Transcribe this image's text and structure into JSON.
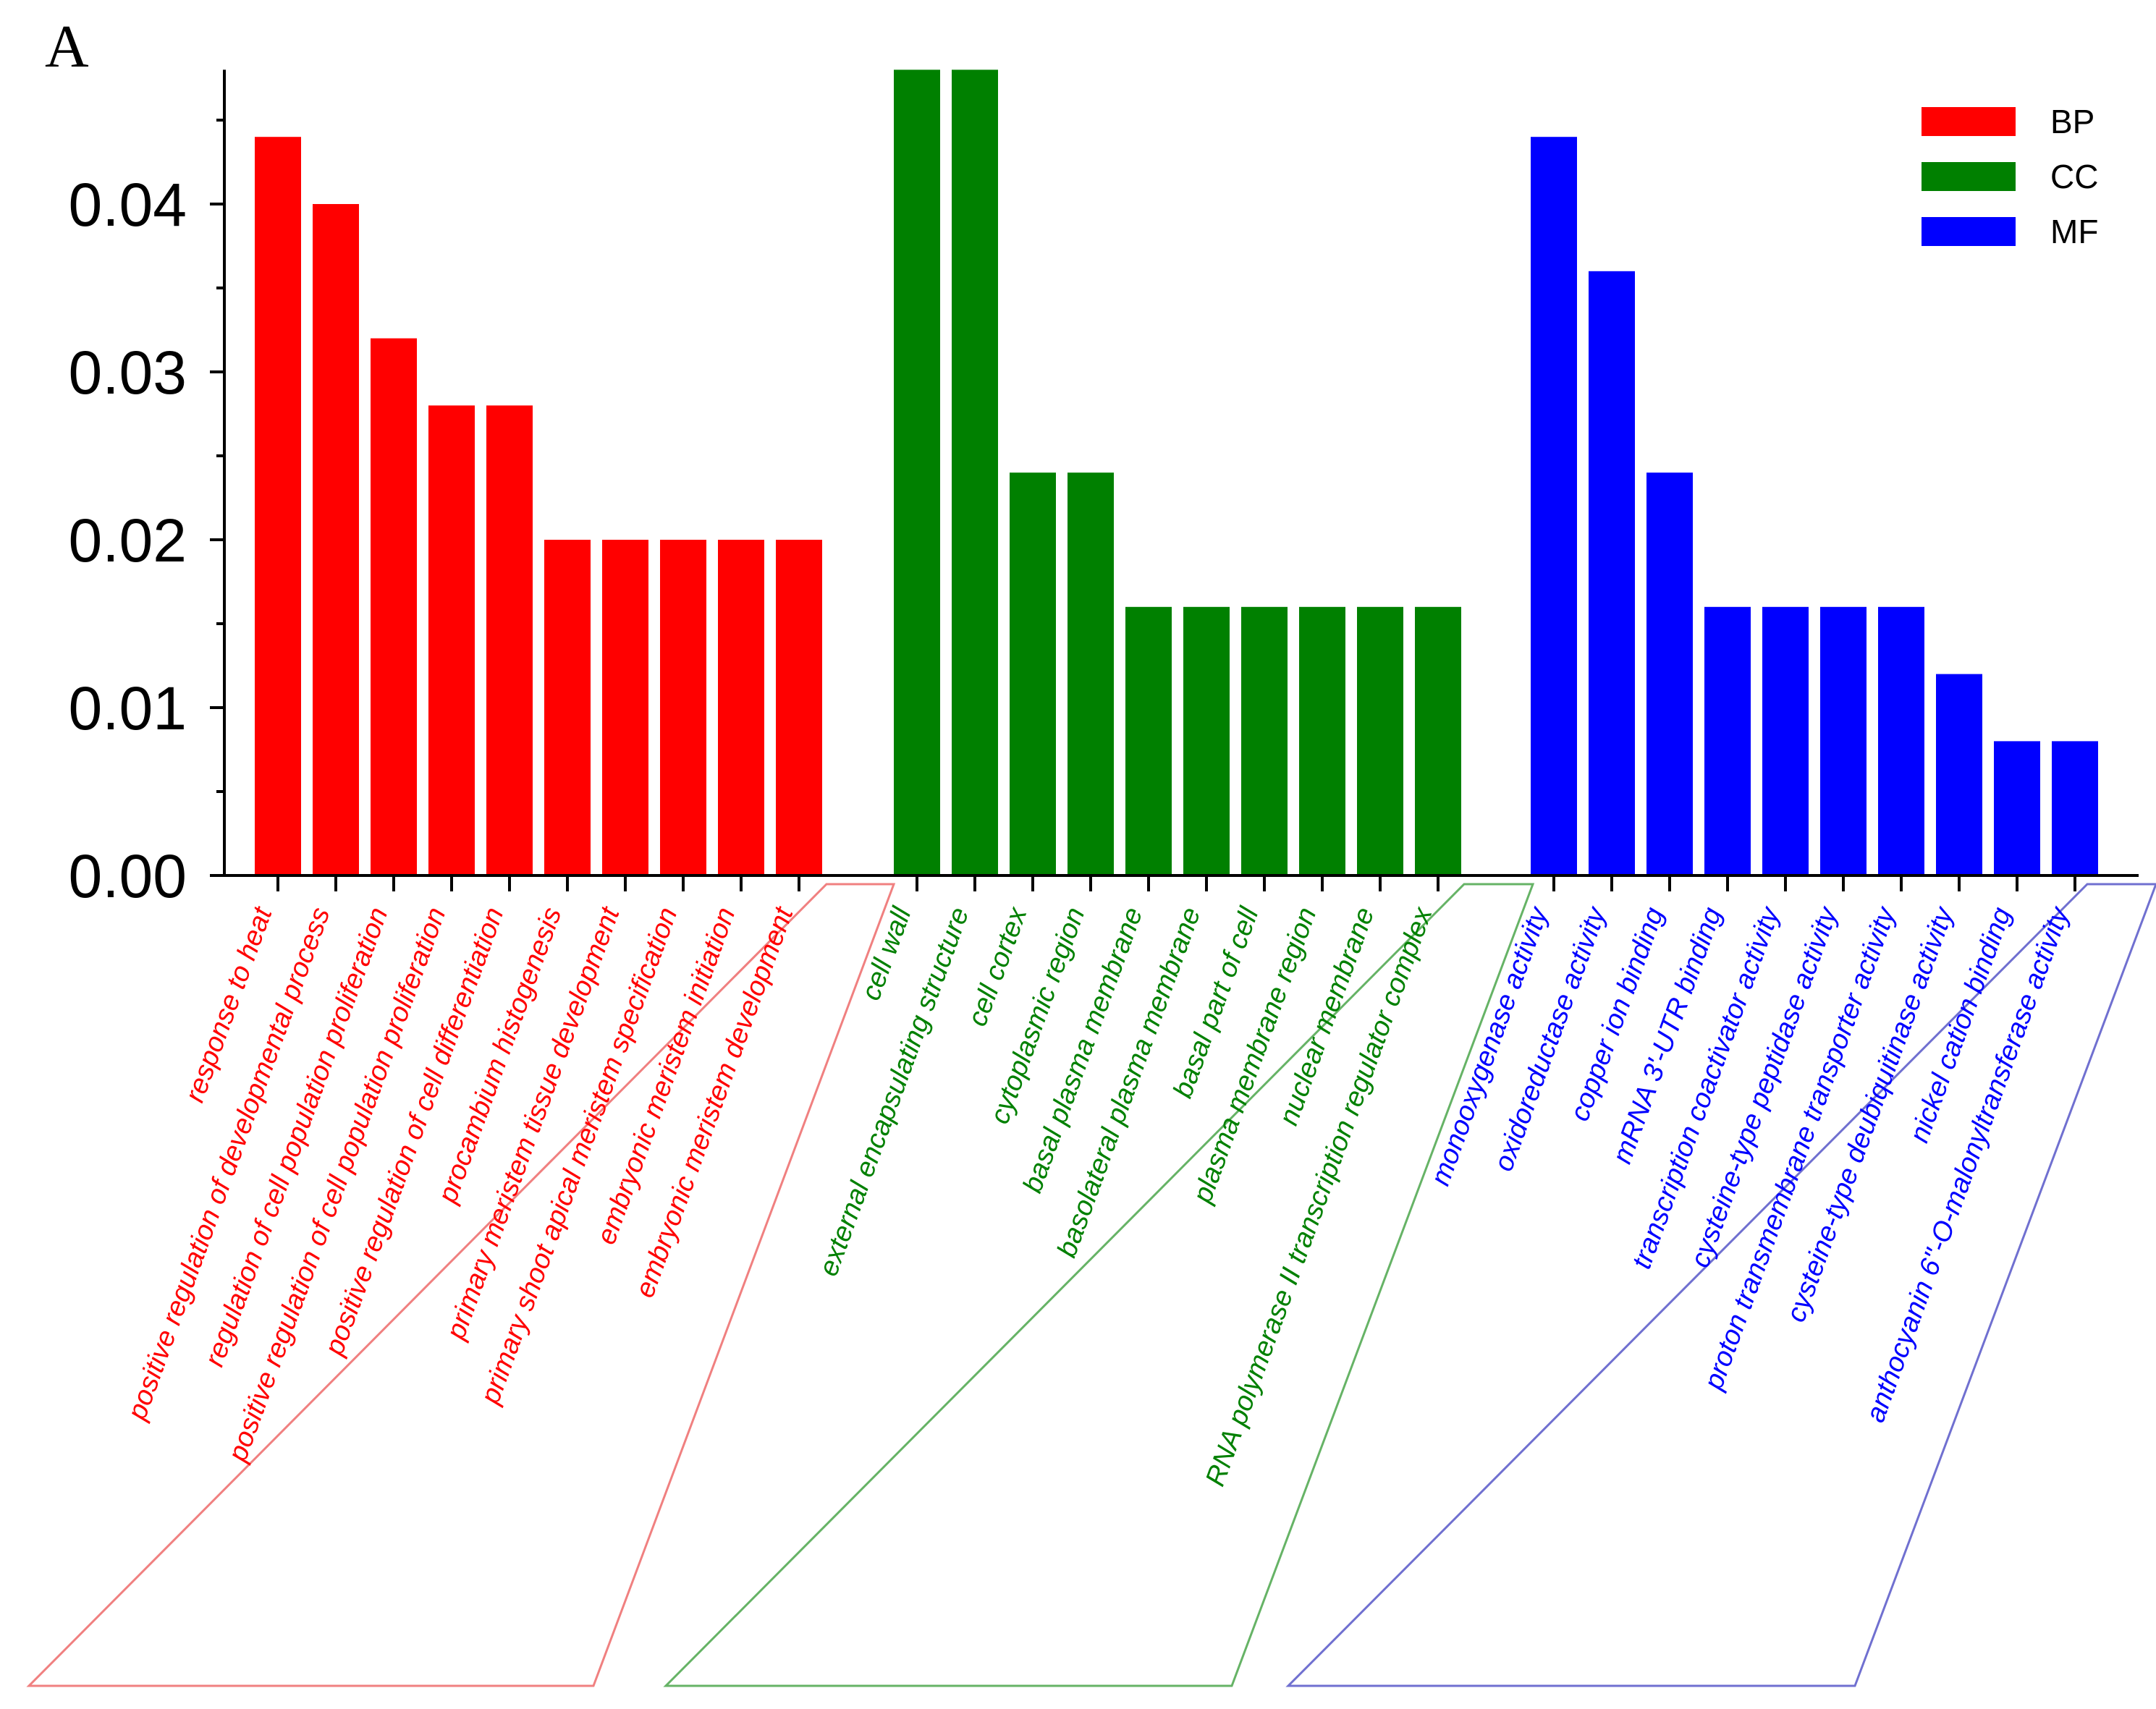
{
  "panel_label": "A",
  "colors": {
    "BP": "#ff0000",
    "CC": "#008000",
    "MF": "#0000ff",
    "BP_frame": "#f08080",
    "CC_frame": "#66b366",
    "MF_frame": "#7070d0"
  },
  "chart_data": {
    "type": "bar",
    "title": "",
    "xlabel": "",
    "ylabel": "",
    "ylim": [
      0,
      0.048
    ],
    "yticks": [
      "0.00",
      "0.01",
      "0.02",
      "0.03",
      "0.04"
    ],
    "legend": {
      "position": "top-right",
      "entries": [
        "BP",
        "CC",
        "MF"
      ]
    },
    "series": [
      {
        "name": "BP",
        "categories": [
          "response to heat",
          "positive regulation of developmental process",
          "regulation of cell population proliferation",
          "positive regulation of cell population proliferation",
          "positive regulation of cell differentiation",
          "procambium histogenesis",
          "primary meristem tissue development",
          "primary shoot apical meristem specification",
          "embryonic meristem initiation",
          "embryonic meristem development"
        ],
        "values": [
          0.044,
          0.04,
          0.032,
          0.028,
          0.028,
          0.02,
          0.02,
          0.02,
          0.02,
          0.02
        ]
      },
      {
        "name": "CC",
        "categories": [
          "cell wall",
          "external encapsulating structure",
          "cell cortex",
          "cytoplasmic region",
          "basal plasma membrane",
          "basolateral plasma membrane",
          "basal part of cell",
          "plasma membrane region",
          "nuclear membrane",
          "RNA polymerase II transcription regulator complex"
        ],
        "values": [
          0.048,
          0.048,
          0.024,
          0.024,
          0.016,
          0.016,
          0.016,
          0.016,
          0.016,
          0.016
        ]
      },
      {
        "name": "MF",
        "categories": [
          "monooxygenase activity",
          "oxidoreductase activity",
          "copper ion binding",
          "mRNA 3'-UTR binding",
          "transcription coactivator activity",
          "cysteine-type peptidase activity",
          "proton transmembrane transporter activity",
          "cysteine-type deubiquitinase activity",
          "nickel cation binding",
          "anthocyanin 6''-O-malonyltransferase activity"
        ],
        "values": [
          0.044,
          0.036,
          0.024,
          0.016,
          0.016,
          0.016,
          0.016,
          0.012,
          0.008,
          0.008
        ]
      }
    ]
  }
}
